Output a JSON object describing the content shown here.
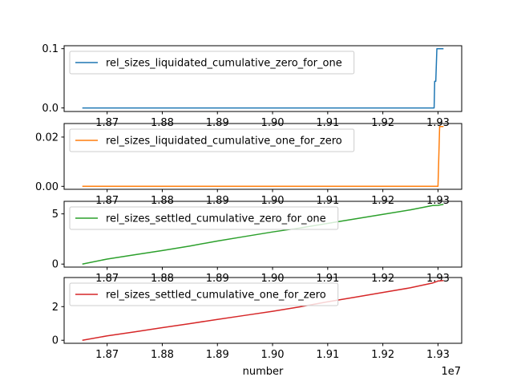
{
  "chart_data": [
    {
      "type": "line",
      "series": [
        {
          "name": "rel_sizes_liquidated_cumulative_zero_for_one",
          "color": "#1f77b4",
          "x": [
            1865500,
            1870000,
            1880000,
            1890000,
            1900000,
            1910000,
            1920000,
            1929300,
            1929400,
            1929600,
            1929800,
            1930000,
            1930200,
            1930400,
            1931000
          ],
          "y": [
            0,
            0,
            0,
            0,
            0,
            0,
            0,
            0,
            0.045,
            0.045,
            0.1,
            0.1,
            0.1,
            0.1,
            0.1
          ]
        }
      ],
      "yticks": [
        0.0,
        0.1
      ],
      "ytick_labels": [
        "0.0",
        "0.1"
      ],
      "ylim": [
        -0.006,
        0.105
      ],
      "legend_loc": "upper left"
    },
    {
      "type": "line",
      "series": [
        {
          "name": "rel_sizes_liquidated_cumulative_one_for_zero",
          "color": "#ff7f0e",
          "x": [
            1865500,
            1870000,
            1880000,
            1890000,
            1900000,
            1910000,
            1920000,
            1930000,
            1930300,
            1930400,
            1931000
          ],
          "y": [
            0,
            0,
            0,
            0,
            0,
            0,
            0,
            0,
            0.0243,
            0.0243,
            0.0243
          ]
        }
      ],
      "yticks": [
        0.0,
        0.02
      ],
      "ytick_labels": [
        "0.00",
        "0.02"
      ],
      "ylim": [
        -0.0012,
        0.0255
      ],
      "legend_loc": "upper left"
    },
    {
      "type": "line",
      "series": [
        {
          "name": "rel_sizes_settled_cumulative_zero_for_one",
          "color": "#2ca02c",
          "x": [
            1865500,
            1870000,
            1875000,
            1880000,
            1885000,
            1890000,
            1895000,
            1900000,
            1905000,
            1910000,
            1915000,
            1920000,
            1925000,
            1929000,
            1930000,
            1931000
          ],
          "y": [
            0,
            0.5,
            0.93,
            1.35,
            1.8,
            2.3,
            2.75,
            3.2,
            3.6,
            4.05,
            4.5,
            4.95,
            5.4,
            5.83,
            5.85,
            5.95
          ]
        }
      ],
      "yticks": [
        0,
        5
      ],
      "ytick_labels": [
        "0",
        "5"
      ],
      "ylim": [
        -0.3,
        6.25
      ],
      "legend_loc": "upper left"
    },
    {
      "type": "line",
      "series": [
        {
          "name": "rel_sizes_settled_cumulative_one_for_zero",
          "color": "#d62728",
          "x": [
            1865500,
            1870000,
            1875000,
            1880000,
            1885000,
            1890000,
            1895000,
            1900000,
            1905000,
            1910000,
            1915000,
            1920000,
            1925000,
            1929000,
            1930000,
            1931000
          ],
          "y": [
            0,
            0.26,
            0.5,
            0.75,
            0.99,
            1.24,
            1.48,
            1.72,
            1.99,
            2.29,
            2.56,
            2.84,
            3.12,
            3.4,
            3.52,
            3.55
          ]
        }
      ],
      "yticks": [
        0,
        2
      ],
      "ytick_labels": [
        "0",
        "2"
      ],
      "ylim": [
        -0.18,
        3.73
      ],
      "legend_loc": "upper left"
    }
  ],
  "x_axis": {
    "label": "number",
    "offset_label": "1e7",
    "ticks": [
      1870000,
      1880000,
      1890000,
      1900000,
      1910000,
      1920000,
      1930000
    ],
    "tick_labels": [
      "1.87",
      "1.88",
      "1.89",
      "1.90",
      "1.91",
      "1.92",
      "1.93"
    ],
    "xlim": [
      1862200,
      1934300
    ]
  }
}
